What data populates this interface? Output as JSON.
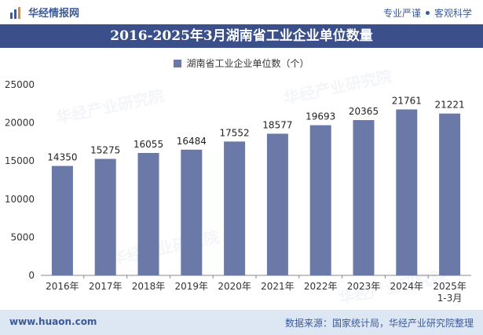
{
  "header": {
    "brand": "华经情报网",
    "tagline_left": "专业严谨",
    "tagline_right": "客观科学"
  },
  "footer": {
    "website": "www.huaon.com",
    "source": "数据来源：国家统计局，华经产业研究院整理"
  },
  "colors": {
    "bar": "#6a79a8",
    "title_bg": "#3b4f8a",
    "footer_bg": "#dde6f3"
  },
  "chart_data": {
    "type": "bar",
    "title": "2016-2025年3月湖南省工业企业单位数量",
    "categories": [
      "2016年",
      "2017年",
      "2018年",
      "2019年",
      "2020年",
      "2021年",
      "2022年",
      "2023年",
      "2024年",
      "2025年\n1-3月"
    ],
    "series": [
      {
        "name": "湖南省工业企业单位数（个）",
        "values": [
          14350,
          15275,
          16055,
          16484,
          17552,
          18577,
          19693,
          20365,
          21761,
          21221
        ]
      }
    ],
    "ylim": [
      0,
      25000
    ],
    "yticks": [
      0,
      5000,
      10000,
      15000,
      20000,
      25000
    ],
    "legend": "top-center",
    "grid": false
  }
}
